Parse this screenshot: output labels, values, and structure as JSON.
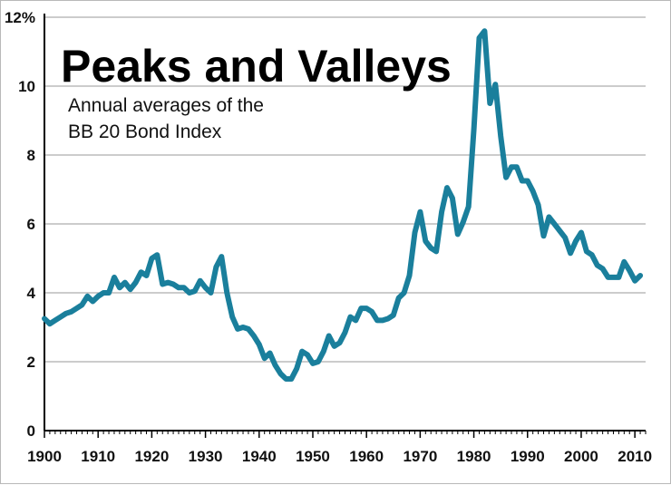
{
  "chart_data": {
    "type": "line",
    "title": "Peaks and Valleys",
    "subtitle": "Annual averages of the BB 20 Bond Index",
    "subtitle_lines": [
      "Annual averages of the",
      "BB 20 Bond Index"
    ],
    "xlabel": "",
    "ylabel": "",
    "xlim": [
      1900,
      2012
    ],
    "ylim": [
      0,
      12
    ],
    "x_ticks": [
      1900,
      1910,
      1920,
      1930,
      1940,
      1950,
      1960,
      1970,
      1980,
      1990,
      2000,
      2010
    ],
    "x_tick_labels": [
      "1900",
      "1910",
      "1920",
      "1930",
      "1940",
      "1950",
      "1960",
      "1970",
      "1980",
      "1990",
      "2000",
      "2010"
    ],
    "y_ticks": [
      0,
      2,
      4,
      6,
      8,
      10,
      12
    ],
    "y_tick_labels": [
      "0",
      "2",
      "4",
      "6",
      "8",
      "10",
      "12%"
    ],
    "grid": "horizontal",
    "line_color": "#1a7f9c",
    "series": [
      {
        "x": [
          1900,
          1901,
          1902,
          1903,
          1904,
          1905,
          1906,
          1907,
          1908,
          1909,
          1910,
          1911,
          1912,
          1913,
          1914,
          1915,
          1916,
          1917,
          1918,
          1919,
          1920,
          1921,
          1922,
          1923,
          1924,
          1925,
          1926,
          1927,
          1928,
          1929,
          1930,
          1931,
          1932,
          1933,
          1934,
          1935,
          1936,
          1937,
          1938,
          1939,
          1940,
          1941,
          1942,
          1943,
          1944,
          1945,
          1946,
          1947,
          1948,
          1949,
          1950,
          1951,
          1952,
          1953,
          1954,
          1955,
          1956,
          1957,
          1958,
          1959,
          1960,
          1961,
          1962,
          1963,
          1964,
          1965,
          1966,
          1967,
          1968,
          1969,
          1970,
          1971,
          1972,
          1973,
          1974,
          1975,
          1976,
          1977,
          1978,
          1979,
          1980,
          1981,
          1982,
          1983,
          1984,
          1985,
          1986,
          1987,
          1988,
          1989,
          1990,
          1991,
          1992,
          1993,
          1994,
          1995,
          1996,
          1997,
          1998,
          1999,
          2000,
          2001,
          2002,
          2003,
          2004,
          2005,
          2006,
          2007,
          2008,
          2009,
          2010,
          2011
        ],
        "values": [
          3.25,
          3.1,
          3.2,
          3.3,
          3.4,
          3.45,
          3.55,
          3.65,
          3.9,
          3.75,
          3.9,
          4.0,
          4.0,
          4.45,
          4.15,
          4.3,
          4.1,
          4.3,
          4.6,
          4.5,
          5.0,
          5.1,
          4.25,
          4.3,
          4.25,
          4.15,
          4.15,
          4.0,
          4.05,
          4.35,
          4.15,
          4.0,
          4.75,
          5.05,
          4.0,
          3.3,
          2.95,
          3.0,
          2.95,
          2.75,
          2.5,
          2.1,
          2.25,
          1.9,
          1.65,
          1.5,
          1.5,
          1.8,
          2.3,
          2.2,
          1.95,
          2.0,
          2.3,
          2.75,
          2.45,
          2.55,
          2.85,
          3.3,
          3.2,
          3.55,
          3.55,
          3.45,
          3.2,
          3.2,
          3.25,
          3.35,
          3.85,
          4.0,
          4.5,
          5.75,
          6.35,
          5.5,
          5.3,
          5.2,
          6.35,
          7.05,
          6.75,
          5.7,
          6.05,
          6.5,
          8.75,
          11.4,
          11.6,
          9.5,
          10.05,
          8.55,
          7.35,
          7.65,
          7.65,
          7.25,
          7.25,
          6.95,
          6.55,
          5.65,
          6.2,
          6.0,
          5.8,
          5.6,
          5.15,
          5.5,
          5.75,
          5.2,
          5.1,
          4.8,
          4.7,
          4.45,
          4.45,
          4.45,
          4.9,
          4.65,
          4.35,
          4.5
        ]
      }
    ]
  }
}
